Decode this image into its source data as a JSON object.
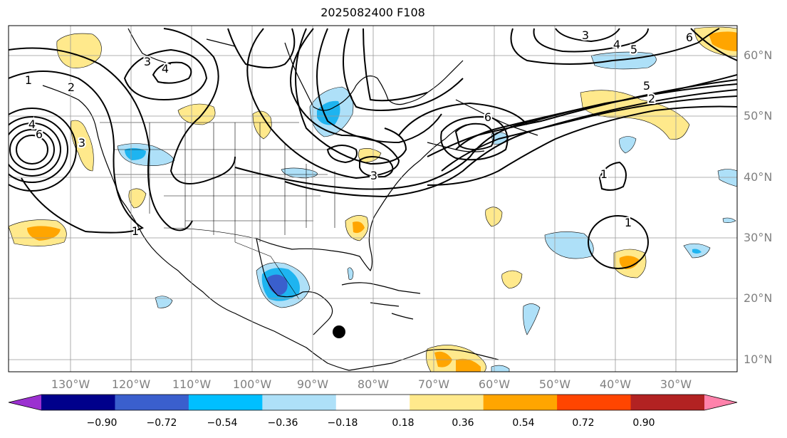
{
  "title": "2025082400 F108",
  "latitude_labels": [
    "60°N",
    "50°N",
    "40°N",
    "30°N",
    "20°N",
    "10°N"
  ],
  "longitude_labels": [
    "130°W",
    "120°W",
    "110°W",
    "100°W",
    "90°W",
    "80°W",
    "70°W",
    "60°W",
    "50°W",
    "40°W",
    "30°W"
  ],
  "colorbar": {
    "ticks": [
      "−0.90",
      "−0.72",
      "−0.54",
      "−0.36",
      "−0.18",
      "0.18",
      "0.36",
      "0.54",
      "0.72",
      "0.90"
    ],
    "colors": [
      "#9b30d0",
      "#00008b",
      "#3a5fcd",
      "#00bfff",
      "#aee0f8",
      "#ffffff",
      "#ffe98c",
      "#ffa500",
      "#ff4500",
      "#b22222",
      "#ff82ab"
    ]
  },
  "contour_labels": [
    "1",
    "2",
    "3",
    "4",
    "5",
    "6"
  ],
  "shading_colors": {
    "light_blue": "#aee0f8",
    "blue": "#1eb4f0",
    "royal_blue": "#3a5fcd",
    "light_yellow": "#ffe98c",
    "orange": "#ffa500",
    "red_orange": "#ff4500"
  }
}
